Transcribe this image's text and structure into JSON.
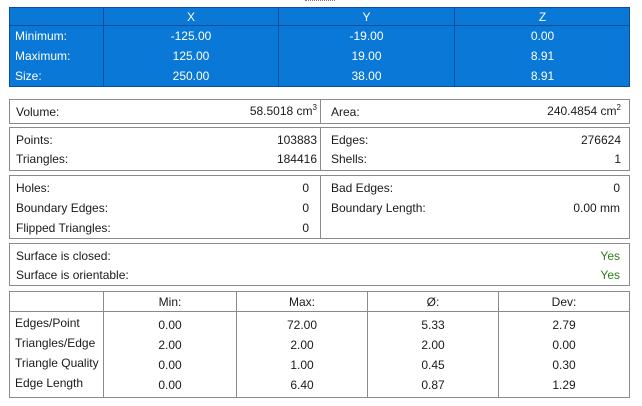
{
  "bounds": {
    "headers": [
      "X",
      "Y",
      "Z"
    ],
    "rows": [
      {
        "label": "Minimum:",
        "values": [
          "-125.00",
          "-19.00",
          "0.00"
        ]
      },
      {
        "label": "Maximum:",
        "values": [
          "125.00",
          "19.00",
          "8.91"
        ]
      },
      {
        "label": "Size:",
        "values": [
          "250.00",
          "38.00",
          "8.91"
        ]
      }
    ]
  },
  "volume": {
    "label": "Volume:",
    "value": "58.5018 cm",
    "unit_exp": "3"
  },
  "area": {
    "label": "Area:",
    "value": "240.4854 cm",
    "unit_exp": "2"
  },
  "counts": {
    "points_label": "Points:",
    "points": "103883",
    "triangles_label": "Triangles:",
    "triangles": "184416",
    "edges_label": "Edges:",
    "edges": "276624",
    "shells_label": "Shells:",
    "shells": "1"
  },
  "defects": {
    "holes_label": "Holes:",
    "holes": "0",
    "boundary_edges_label": "Boundary Edges:",
    "boundary_edges": "0",
    "flipped_label": "Flipped Triangles:",
    "flipped": "0",
    "bad_edges_label": "Bad Edges:",
    "bad_edges": "0",
    "boundary_length_label": "Boundary Length:",
    "boundary_length": "0.00 mm"
  },
  "surface": {
    "closed_label": "Surface is closed:",
    "closed": "Yes",
    "orientable_label": "Surface is orientable:",
    "orientable": "Yes",
    "status_color": "#2e7d1e"
  },
  "stats": {
    "headers": [
      "Min:",
      "Max:",
      "Ø:",
      "Dev:"
    ],
    "rows": [
      {
        "label": "Edges/Point",
        "values": [
          "0.00",
          "72.00",
          "5.33",
          "2.79"
        ]
      },
      {
        "label": "Triangles/Edge",
        "values": [
          "2.00",
          "2.00",
          "2.00",
          "0.00"
        ]
      },
      {
        "label": "Triangle Quality",
        "values": [
          "0.00",
          "1.00",
          "0.45",
          "0.30"
        ]
      },
      {
        "label": "Edge Length",
        "values": [
          "0.00",
          "6.40",
          "0.87",
          "1.29"
        ]
      }
    ]
  },
  "colors": {
    "header_blue": "#0a78d7",
    "yes_green": "#2e7d1e"
  }
}
